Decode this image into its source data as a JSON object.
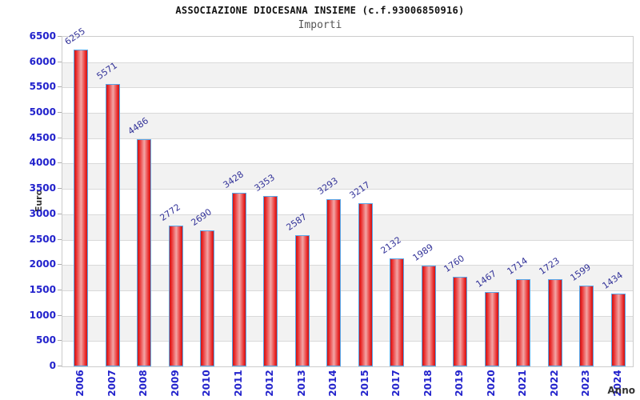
{
  "header": {
    "title": "ASSOCIAZIONE DIOCESANA INSIEME (c.f.93006850916)",
    "subtitle": "Importi"
  },
  "chart_data": {
    "type": "bar",
    "title": "ASSOCIAZIONE DIOCESANA INSIEME (c.f.93006850916)",
    "subtitle": "Importi",
    "xlabel": "Anno",
    "ylabel": "Euro",
    "categories": [
      "2006",
      "2007",
      "2008",
      "2009",
      "2010",
      "2011",
      "2012",
      "2013",
      "2014",
      "2015",
      "2017",
      "2018",
      "2019",
      "2020",
      "2021",
      "2022",
      "2023",
      "2024"
    ],
    "values": [
      6255,
      5571,
      4486,
      2772,
      2690,
      3428,
      3353,
      2587,
      3293,
      3217,
      2132,
      1989,
      1760,
      1467,
      1714,
      1723,
      1599,
      1434
    ],
    "ylim": [
      0,
      6500
    ],
    "ytick_step": 500,
    "grid": "horizontal-bands-alternating",
    "legend": "none",
    "colors": {
      "bar_fill_edge": "#c41818",
      "bar_fill_main": "#e92525",
      "bar_fill_highlight": "#f2a5a5",
      "bar_border": "#58a6e8",
      "axis_tick_label": "#2222cc",
      "value_label": "#333399",
      "axis_title": "#333333",
      "title": "#111111",
      "subtitle": "#555555",
      "band_gray": "#f2f2f2",
      "band_white": "#ffffff",
      "gridline": "#d9d9d9",
      "tick_mark": "#aaaaaa",
      "plot_border": "#cccccc",
      "background": "#ffffff"
    }
  }
}
